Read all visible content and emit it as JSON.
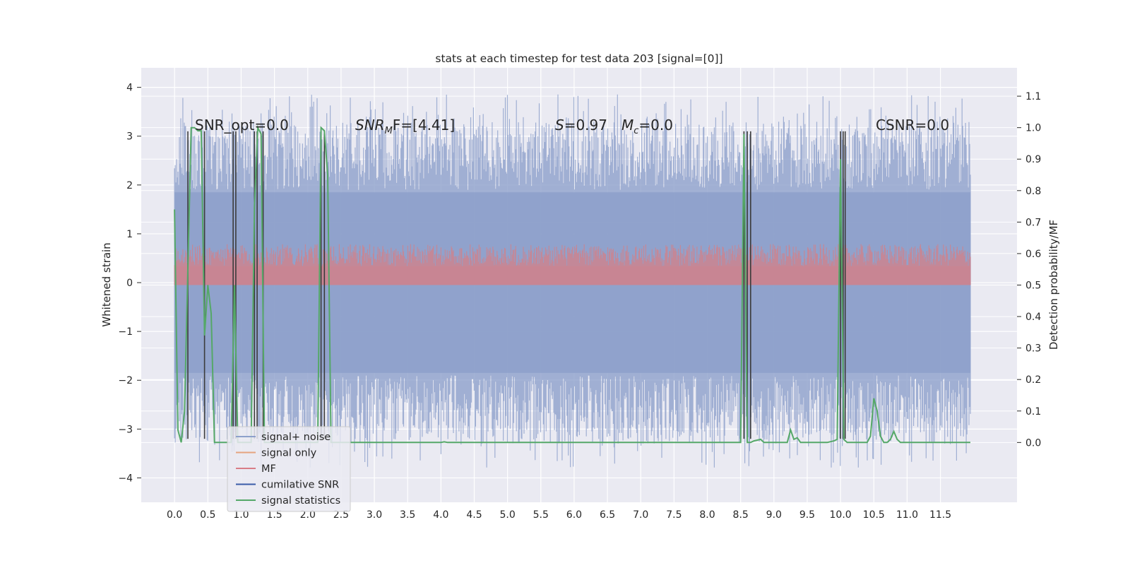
{
  "chart_data": {
    "type": "line",
    "title": "stats at each timestep for test data 203 [signal=[0]]",
    "xlabel": "",
    "ylabel": "Whitened strain",
    "y2label": "Detection probability/MF",
    "xlim": [
      -0.5,
      12.65
    ],
    "ylim": [
      -4.5,
      4.4
    ],
    "y2lim": [
      -0.19,
      1.19
    ],
    "x_ticks": [
      "0.0",
      "0.5",
      "1.0",
      "1.5",
      "2.0",
      "2.5",
      "3.0",
      "3.5",
      "4.0",
      "4.5",
      "5.0",
      "5.5",
      "6.0",
      "6.5",
      "7.0",
      "7.5",
      "8.0",
      "8.5",
      "9.0",
      "9.5",
      "10.0",
      "10.5",
      "11.0",
      "11.5"
    ],
    "y_ticks": [
      "4",
      "3",
      "2",
      "1",
      "0",
      "−1",
      "−2",
      "−3",
      "−4"
    ],
    "y2_ticks": [
      "1.1",
      "1.0",
      "0.9",
      "0.8",
      "0.7",
      "0.6",
      "0.5",
      "0.4",
      "0.3",
      "0.2",
      "0.1",
      "0.0"
    ],
    "grid": true,
    "legend_position": "lower-left",
    "annotations": {
      "snr_opt": "SNR_opt=0.0",
      "snr_mf_base": "SNR",
      "snr_mf_sub": "M",
      "snr_mf_rest": "F=[4.41]",
      "s_val": "S",
      "s_rest": "=0.97",
      "mc_base": "M",
      "mc_sub": "c",
      "mc_rest": "=0.0",
      "csnr": "CSNR=0.0"
    },
    "legend": [
      {
        "name": "signal+ noise",
        "color": "#8da0cb"
      },
      {
        "name": "signal only",
        "color": "#e6a47f"
      },
      {
        "name": "MF",
        "color": "#d97d87"
      },
      {
        "name": "cumilative SNR",
        "color": "#3a5ca8"
      },
      {
        "name": "signal statistics",
        "color": "#55a868"
      }
    ],
    "series": [
      {
        "name": "signal statistics",
        "axis": "right",
        "x": [
          0.0,
          0.05,
          0.1,
          0.15,
          0.2,
          0.25,
          0.3,
          0.35,
          0.4,
          0.45,
          0.5,
          0.55,
          0.6,
          0.65,
          0.7,
          0.75,
          0.8,
          0.85,
          0.9,
          0.95,
          1.0,
          1.05,
          1.1,
          1.15,
          1.2,
          1.25,
          1.3,
          1.35,
          1.4,
          1.45,
          1.5,
          1.6,
          1.7,
          1.8,
          1.9,
          2.0,
          2.1,
          2.15,
          2.2,
          2.25,
          2.3,
          2.35,
          2.4,
          2.45,
          2.5,
          3.0,
          3.5,
          4.0,
          4.05,
          4.1,
          4.2,
          4.5,
          5.0,
          5.5,
          6.0,
          6.5,
          7.0,
          7.5,
          8.0,
          8.5,
          8.55,
          8.6,
          8.65,
          8.7,
          8.8,
          8.85,
          8.9,
          9.0,
          9.1,
          9.2,
          9.25,
          9.3,
          9.35,
          9.4,
          9.45,
          9.5,
          9.6,
          9.8,
          9.9,
          9.95,
          10.0,
          10.05,
          10.1,
          10.15,
          10.2,
          10.3,
          10.4,
          10.45,
          10.5,
          10.55,
          10.6,
          10.65,
          10.7,
          10.75,
          10.8,
          10.85,
          10.9,
          10.95,
          11.0,
          11.5,
          11.95
        ],
        "values": [
          0.74,
          0.04,
          0.0,
          0.1,
          0.55,
          1.0,
          1.0,
          0.99,
          0.99,
          0.34,
          0.5,
          0.41,
          0.0,
          0.0,
          0.0,
          0.0,
          0.0,
          0.0,
          0.5,
          0.0,
          0.0,
          0.0,
          0.0,
          0.0,
          0.75,
          1.0,
          0.98,
          0.0,
          0.0,
          0.0,
          0.0,
          0.0,
          0.0,
          0.0,
          0.0,
          0.0,
          0.0,
          0.0,
          1.0,
          0.99,
          0.85,
          0.0,
          0.0,
          0.0,
          0.0,
          0.0,
          0.0,
          0.0,
          0.002,
          0.0,
          0.0,
          0.0,
          0.0,
          0.0,
          0.0,
          0.0,
          0.0,
          0.0,
          0.0,
          0.0,
          0.98,
          0.0,
          0.0,
          0.005,
          0.01,
          0.0,
          0.0,
          0.0,
          0.0,
          0.0,
          0.04,
          0.01,
          0.015,
          0.0,
          0.0,
          0.0,
          0.0,
          0.0,
          0.005,
          0.01,
          0.9,
          0.01,
          0.0,
          0.0,
          0.0,
          0.0,
          0.0,
          0.02,
          0.14,
          0.1,
          0.02,
          0.0,
          0.0,
          0.01,
          0.035,
          0.01,
          0.0,
          0.0,
          0.0,
          0.0,
          0.0
        ]
      },
      {
        "name": "cumilative SNR",
        "axis": "left",
        "type": "vlines",
        "x": [
          0.2,
          0.45,
          0.88,
          0.92,
          1.2,
          1.24,
          1.33,
          2.2,
          2.25,
          8.55,
          8.6,
          8.65,
          10.0,
          10.04,
          10.07
        ],
        "values": [
          3.1,
          3.1,
          3.1,
          3.1,
          3.1,
          3.1,
          3.1,
          3.1,
          3.1,
          3.1,
          3.1,
          3.1,
          3.1,
          3.1,
          3.1
        ]
      }
    ]
  }
}
